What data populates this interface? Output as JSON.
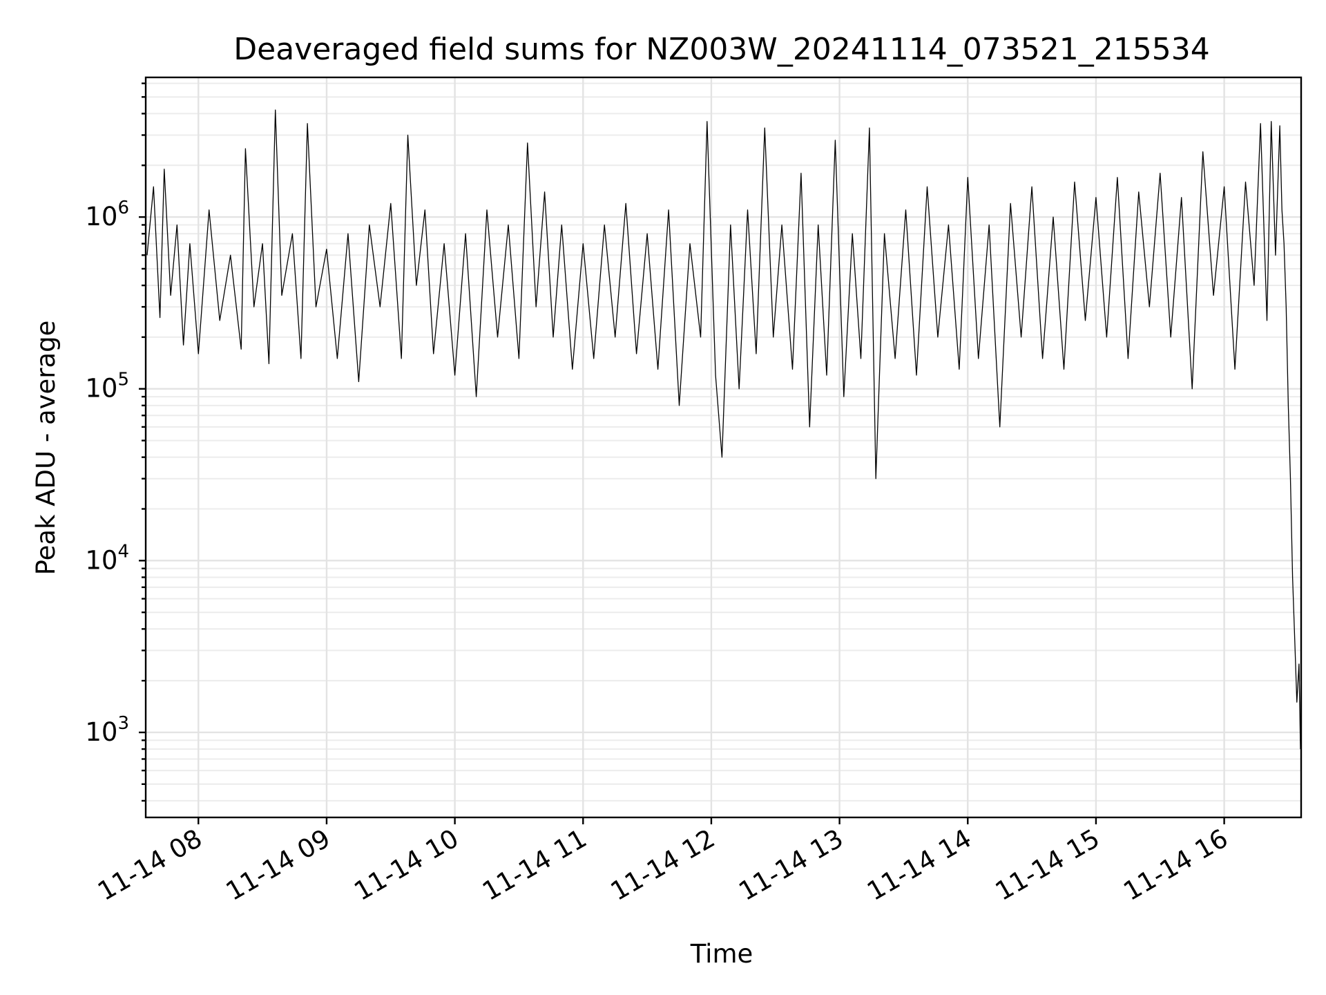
{
  "chart_data": {
    "type": "line",
    "title": "Deaveraged field sums for NZ003W_20241114_073521_215534",
    "xlabel": "Time",
    "ylabel": "Peak ADU - average",
    "yscale": "log",
    "ylim": [
      320,
      6500000
    ],
    "xlim": [
      "2024-11-14 07:35:21",
      "2024-11-14 16:36:00"
    ],
    "x_ticks": [
      {
        "time": "2024-11-14 08:00",
        "label": "11-14 08"
      },
      {
        "time": "2024-11-14 09:00",
        "label": "11-14 09"
      },
      {
        "time": "2024-11-14 10:00",
        "label": "11-14 10"
      },
      {
        "time": "2024-11-14 11:00",
        "label": "11-14 11"
      },
      {
        "time": "2024-11-14 12:00",
        "label": "11-14 12"
      },
      {
        "time": "2024-11-14 13:00",
        "label": "11-14 13"
      },
      {
        "time": "2024-11-14 14:00",
        "label": "11-14 14"
      },
      {
        "time": "2024-11-14 15:00",
        "label": "11-14 15"
      },
      {
        "time": "2024-11-14 16:00",
        "label": "11-14 16"
      }
    ],
    "y_ticks": [
      {
        "value": 1000,
        "base": "10",
        "exp": "3"
      },
      {
        "value": 10000,
        "base": "10",
        "exp": "4"
      },
      {
        "value": 100000,
        "base": "10",
        "exp": "5"
      },
      {
        "value": 1000000,
        "base": "10",
        "exp": "6"
      }
    ],
    "grid": true,
    "series": [
      {
        "color": "#000000",
        "points": [
          [
            "2024-11-14 07:36",
            600000
          ],
          [
            "2024-11-14 07:39",
            1500000
          ],
          [
            "2024-11-14 07:42",
            260000
          ],
          [
            "2024-11-14 07:44",
            1900000
          ],
          [
            "2024-11-14 07:47",
            350000
          ],
          [
            "2024-11-14 07:50",
            900000
          ],
          [
            "2024-11-14 07:53",
            180000
          ],
          [
            "2024-11-14 07:56",
            700000
          ],
          [
            "2024-11-14 08:00",
            160000
          ],
          [
            "2024-11-14 08:05",
            1100000
          ],
          [
            "2024-11-14 08:10",
            250000
          ],
          [
            "2024-11-14 08:15",
            600000
          ],
          [
            "2024-11-14 08:20",
            170000
          ],
          [
            "2024-11-14 08:22",
            2500000
          ],
          [
            "2024-11-14 08:26",
            300000
          ],
          [
            "2024-11-14 08:30",
            700000
          ],
          [
            "2024-11-14 08:33",
            140000
          ],
          [
            "2024-11-14 08:36",
            4200000
          ],
          [
            "2024-11-14 08:39",
            350000
          ],
          [
            "2024-11-14 08:44",
            800000
          ],
          [
            "2024-11-14 08:48",
            150000
          ],
          [
            "2024-11-14 08:51",
            3500000
          ],
          [
            "2024-11-14 08:55",
            300000
          ],
          [
            "2024-11-14 09:00",
            650000
          ],
          [
            "2024-11-14 09:05",
            150000
          ],
          [
            "2024-11-14 09:10",
            800000
          ],
          [
            "2024-11-14 09:15",
            110000
          ],
          [
            "2024-11-14 09:20",
            900000
          ],
          [
            "2024-11-14 09:25",
            300000
          ],
          [
            "2024-11-14 09:30",
            1200000
          ],
          [
            "2024-11-14 09:35",
            150000
          ],
          [
            "2024-11-14 09:38",
            3000000
          ],
          [
            "2024-11-14 09:42",
            400000
          ],
          [
            "2024-11-14 09:46",
            1100000
          ],
          [
            "2024-11-14 09:50",
            160000
          ],
          [
            "2024-11-14 09:55",
            700000
          ],
          [
            "2024-11-14 10:00",
            120000
          ],
          [
            "2024-11-14 10:05",
            800000
          ],
          [
            "2024-11-14 10:10",
            90000
          ],
          [
            "2024-11-14 10:15",
            1100000
          ],
          [
            "2024-11-14 10:20",
            200000
          ],
          [
            "2024-11-14 10:25",
            900000
          ],
          [
            "2024-11-14 10:30",
            150000
          ],
          [
            "2024-11-14 10:34",
            2700000
          ],
          [
            "2024-11-14 10:38",
            300000
          ],
          [
            "2024-11-14 10:42",
            1400000
          ],
          [
            "2024-11-14 10:46",
            200000
          ],
          [
            "2024-11-14 10:50",
            900000
          ],
          [
            "2024-11-14 10:55",
            130000
          ],
          [
            "2024-11-14 11:00",
            700000
          ],
          [
            "2024-11-14 11:05",
            150000
          ],
          [
            "2024-11-14 11:10",
            900000
          ],
          [
            "2024-11-14 11:15",
            200000
          ],
          [
            "2024-11-14 11:20",
            1200000
          ],
          [
            "2024-11-14 11:25",
            160000
          ],
          [
            "2024-11-14 11:30",
            800000
          ],
          [
            "2024-11-14 11:35",
            130000
          ],
          [
            "2024-11-14 11:40",
            1100000
          ],
          [
            "2024-11-14 11:45",
            80000
          ],
          [
            "2024-11-14 11:50",
            700000
          ],
          [
            "2024-11-14 11:55",
            200000
          ],
          [
            "2024-11-14 11:58",
            3600000
          ],
          [
            "2024-11-14 12:02",
            120000
          ],
          [
            "2024-11-14 12:05",
            40000
          ],
          [
            "2024-11-14 12:09",
            900000
          ],
          [
            "2024-11-14 12:13",
            100000
          ],
          [
            "2024-11-14 12:17",
            1100000
          ],
          [
            "2024-11-14 12:21",
            160000
          ],
          [
            "2024-11-14 12:25",
            3300000
          ],
          [
            "2024-11-14 12:29",
            200000
          ],
          [
            "2024-11-14 12:33",
            900000
          ],
          [
            "2024-11-14 12:38",
            130000
          ],
          [
            "2024-11-14 12:42",
            1800000
          ],
          [
            "2024-11-14 12:46",
            60000
          ],
          [
            "2024-11-14 12:50",
            900000
          ],
          [
            "2024-11-14 12:54",
            120000
          ],
          [
            "2024-11-14 12:58",
            2800000
          ],
          [
            "2024-11-14 13:02",
            90000
          ],
          [
            "2024-11-14 13:06",
            800000
          ],
          [
            "2024-11-14 13:10",
            150000
          ],
          [
            "2024-11-14 13:14",
            3300000
          ],
          [
            "2024-11-14 13:17",
            30000
          ],
          [
            "2024-11-14 13:21",
            800000
          ],
          [
            "2024-11-14 13:26",
            150000
          ],
          [
            "2024-11-14 13:31",
            1100000
          ],
          [
            "2024-11-14 13:36",
            120000
          ],
          [
            "2024-11-14 13:41",
            1500000
          ],
          [
            "2024-11-14 13:46",
            200000
          ],
          [
            "2024-11-14 13:51",
            900000
          ],
          [
            "2024-11-14 13:56",
            130000
          ],
          [
            "2024-11-14 14:00",
            1700000
          ],
          [
            "2024-11-14 14:05",
            150000
          ],
          [
            "2024-11-14 14:10",
            900000
          ],
          [
            "2024-11-14 14:15",
            60000
          ],
          [
            "2024-11-14 14:20",
            1200000
          ],
          [
            "2024-11-14 14:25",
            200000
          ],
          [
            "2024-11-14 14:30",
            1500000
          ],
          [
            "2024-11-14 14:35",
            150000
          ],
          [
            "2024-11-14 14:40",
            1000000
          ],
          [
            "2024-11-14 14:45",
            130000
          ],
          [
            "2024-11-14 14:50",
            1600000
          ],
          [
            "2024-11-14 14:55",
            250000
          ],
          [
            "2024-11-14 15:00",
            1300000
          ],
          [
            "2024-11-14 15:05",
            200000
          ],
          [
            "2024-11-14 15:10",
            1700000
          ],
          [
            "2024-11-14 15:15",
            150000
          ],
          [
            "2024-11-14 15:20",
            1400000
          ],
          [
            "2024-11-14 15:25",
            300000
          ],
          [
            "2024-11-14 15:30",
            1800000
          ],
          [
            "2024-11-14 15:35",
            200000
          ],
          [
            "2024-11-14 15:40",
            1300000
          ],
          [
            "2024-11-14 15:45",
            100000
          ],
          [
            "2024-11-14 15:50",
            2400000
          ],
          [
            "2024-11-14 15:55",
            350000
          ],
          [
            "2024-11-14 16:00",
            1500000
          ],
          [
            "2024-11-14 16:05",
            130000
          ],
          [
            "2024-11-14 16:10",
            1600000
          ],
          [
            "2024-11-14 16:14",
            400000
          ],
          [
            "2024-11-14 16:17",
            3500000
          ],
          [
            "2024-11-14 16:20",
            250000
          ],
          [
            "2024-11-14 16:22",
            3600000
          ],
          [
            "2024-11-14 16:24",
            600000
          ],
          [
            "2024-11-14 16:26",
            3400000
          ],
          [
            "2024-11-14 16:27",
            1100000
          ],
          [
            "2024-11-14 16:28",
            700000
          ],
          [
            "2024-11-14 16:29",
            300000
          ],
          [
            "2024-11-14 16:30",
            80000
          ],
          [
            "2024-11-14 16:31",
            30000
          ],
          [
            "2024-11-14 16:32",
            8000
          ],
          [
            "2024-11-14 16:33",
            3500
          ],
          [
            "2024-11-14 16:34",
            1500
          ],
          [
            "2024-11-14 16:35",
            2500
          ],
          [
            "2024-11-14 16:35:40",
            800
          ]
        ]
      }
    ]
  }
}
